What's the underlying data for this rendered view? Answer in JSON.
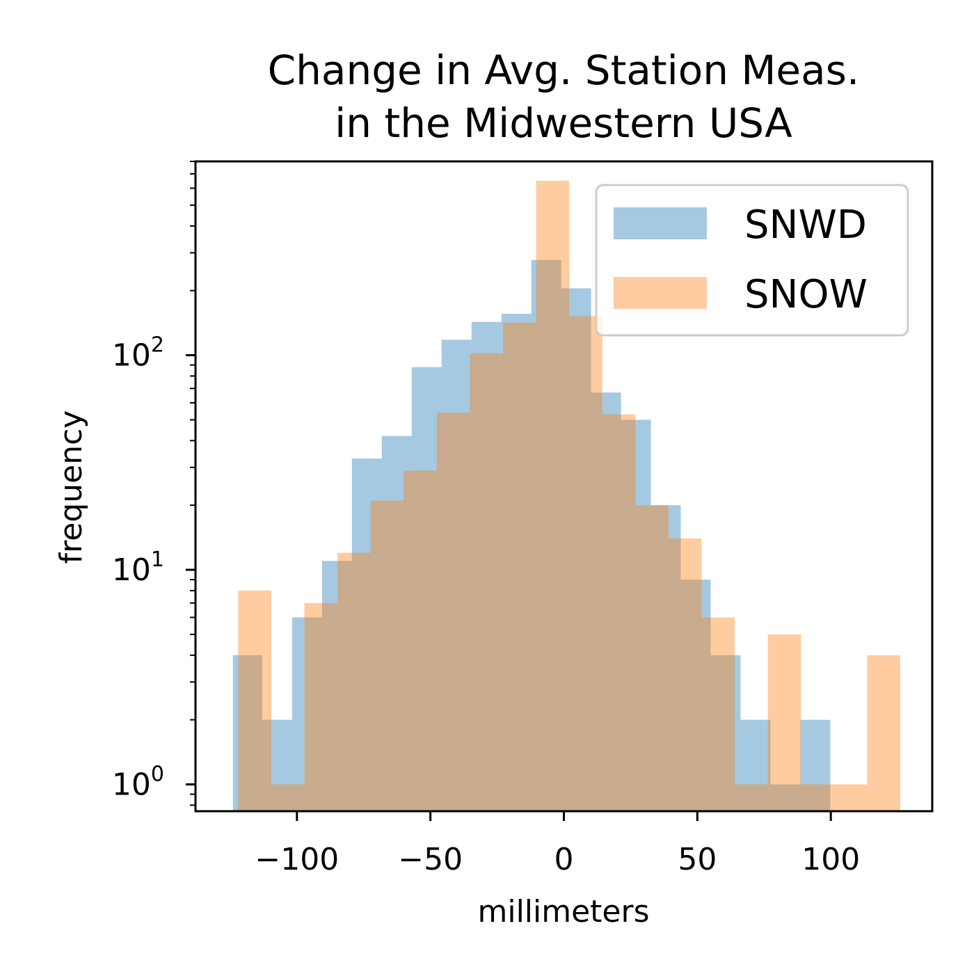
{
  "chart_data": {
    "type": "bar",
    "histogram": true,
    "title_lines": [
      "Change in Avg. Station Meas.",
      "in the Midwestern USA"
    ],
    "xlabel": "millimeters",
    "ylabel": "frequency",
    "yscale": "log",
    "xlim": [
      -138,
      138
    ],
    "ylim": [
      0.75,
      800
    ],
    "x_ticks": [
      -100,
      -50,
      0,
      50,
      100
    ],
    "x_tick_labels": [
      "−100",
      "−50",
      "0",
      "50",
      "100"
    ],
    "y_ticks": [
      1,
      10,
      100
    ],
    "y_tick_labels": [
      {
        "base": "10",
        "exp": "0"
      },
      {
        "base": "10",
        "exp": "1"
      },
      {
        "base": "10",
        "exp": "2"
      }
    ],
    "legend": {
      "position": "top-right"
    },
    "series": [
      {
        "name": "SNWD",
        "color": "#1f77b4",
        "alpha": 0.4,
        "bins": [
          {
            "x0": -124.0,
            "x1": -113.0,
            "count": 4
          },
          {
            "x0": -113.0,
            "x1": -101.8,
            "count": 2
          },
          {
            "x0": -101.8,
            "x1": -90.6,
            "count": 6
          },
          {
            "x0": -90.6,
            "x1": -79.4,
            "count": 11
          },
          {
            "x0": -79.4,
            "x1": -68.2,
            "count": 33
          },
          {
            "x0": -68.2,
            "x1": -57.0,
            "count": 42
          },
          {
            "x0": -57.0,
            "x1": -45.8,
            "count": 88
          },
          {
            "x0": -45.8,
            "x1": -34.6,
            "count": 118
          },
          {
            "x0": -34.6,
            "x1": -23.4,
            "count": 143
          },
          {
            "x0": -23.4,
            "x1": -12.2,
            "count": 156
          },
          {
            "x0": -12.2,
            "x1": -1.0,
            "count": 278
          },
          {
            "x0": -1.0,
            "x1": 10.2,
            "count": 205
          },
          {
            "x0": 10.2,
            "x1": 21.4,
            "count": 67
          },
          {
            "x0": 21.4,
            "x1": 32.6,
            "count": 50
          },
          {
            "x0": 32.6,
            "x1": 43.8,
            "count": 20
          },
          {
            "x0": 43.8,
            "x1": 55.0,
            "count": 9
          },
          {
            "x0": 55.0,
            "x1": 66.2,
            "count": 4
          },
          {
            "x0": 66.2,
            "x1": 77.4,
            "count": 2
          },
          {
            "x0": 77.4,
            "x1": 88.6,
            "count": 1
          },
          {
            "x0": 88.6,
            "x1": 99.8,
            "count": 2
          }
        ]
      },
      {
        "name": "SNOW",
        "color": "#ff7f0e",
        "alpha": 0.4,
        "bins": [
          {
            "x0": -122.0,
            "x1": -109.6,
            "count": 8
          },
          {
            "x0": -109.6,
            "x1": -97.2,
            "count": 1
          },
          {
            "x0": -97.2,
            "x1": -84.8,
            "count": 7
          },
          {
            "x0": -84.8,
            "x1": -72.4,
            "count": 12
          },
          {
            "x0": -72.4,
            "x1": -60.0,
            "count": 21
          },
          {
            "x0": -60.0,
            "x1": -47.6,
            "count": 29
          },
          {
            "x0": -47.6,
            "x1": -35.2,
            "count": 54
          },
          {
            "x0": -35.2,
            "x1": -22.8,
            "count": 102
          },
          {
            "x0": -22.8,
            "x1": -10.4,
            "count": 142
          },
          {
            "x0": -10.4,
            "x1": 2.0,
            "count": 650
          },
          {
            "x0": 2.0,
            "x1": 14.4,
            "count": 152
          },
          {
            "x0": 14.4,
            "x1": 26.8,
            "count": 53
          },
          {
            "x0": 26.8,
            "x1": 39.2,
            "count": 20
          },
          {
            "x0": 39.2,
            "x1": 51.6,
            "count": 14
          },
          {
            "x0": 51.6,
            "x1": 64.0,
            "count": 6
          },
          {
            "x0": 64.0,
            "x1": 76.4,
            "count": 1
          },
          {
            "x0": 76.4,
            "x1": 88.8,
            "count": 5
          },
          {
            "x0": 88.8,
            "x1": 101.2,
            "count": 1
          },
          {
            "x0": 101.2,
            "x1": 113.6,
            "count": 1
          },
          {
            "x0": 113.6,
            "x1": 126.0,
            "count": 4
          }
        ]
      }
    ]
  }
}
